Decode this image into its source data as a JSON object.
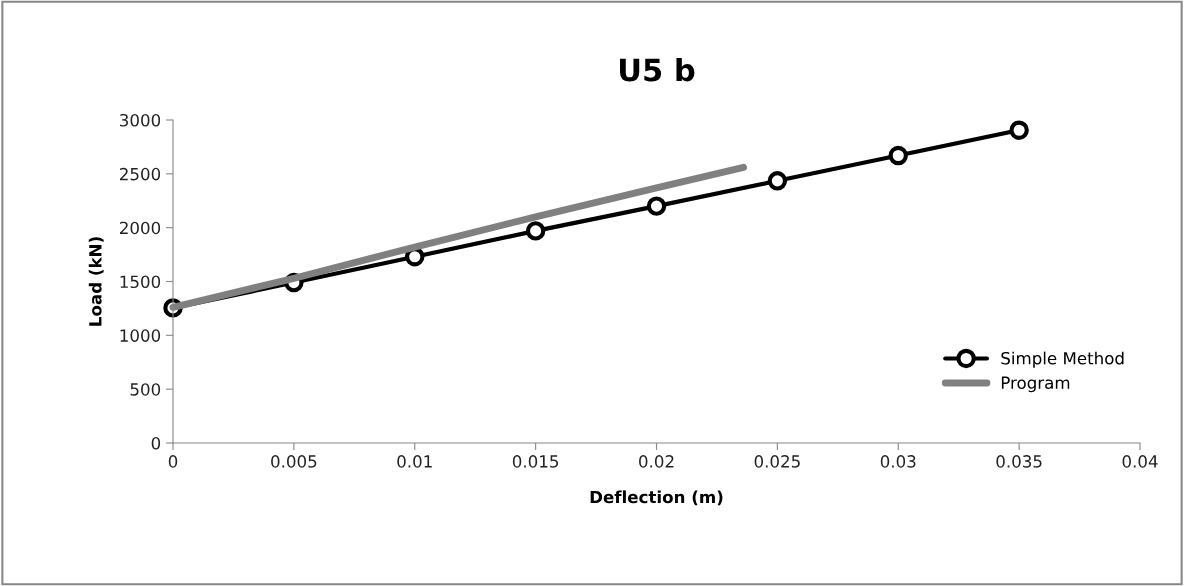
{
  "chart_data": {
    "type": "line",
    "title": "U5 b",
    "xlabel": "Deflection (m)",
    "ylabel": "Load (kN)",
    "xlim": [
      0,
      0.04
    ],
    "xticks": [
      0,
      0.005,
      0.01,
      0.015,
      0.02,
      0.025,
      0.03,
      0.035,
      0.04
    ],
    "ylim": [
      0,
      3000
    ],
    "yticks": [
      0,
      500,
      1000,
      1500,
      2000,
      2500,
      3000
    ],
    "grid": false,
    "legend": "right",
    "series": [
      {
        "name": "Simple Method",
        "color": "#000000",
        "marker": "circle",
        "x": [
          0,
          0.005,
          0.01,
          0.015,
          0.02,
          0.025,
          0.03,
          0.035
        ],
        "values": [
          1255,
          1490,
          1730,
          1970,
          2200,
          2435,
          2670,
          2905
        ]
      },
      {
        "name": "Program",
        "color": "#808080",
        "marker": "none",
        "x": [
          0,
          0.005,
          0.01,
          0.015,
          0.02,
          0.0236
        ],
        "values": [
          1260,
          1530,
          1820,
          2100,
          2370,
          2560
        ]
      }
    ]
  }
}
